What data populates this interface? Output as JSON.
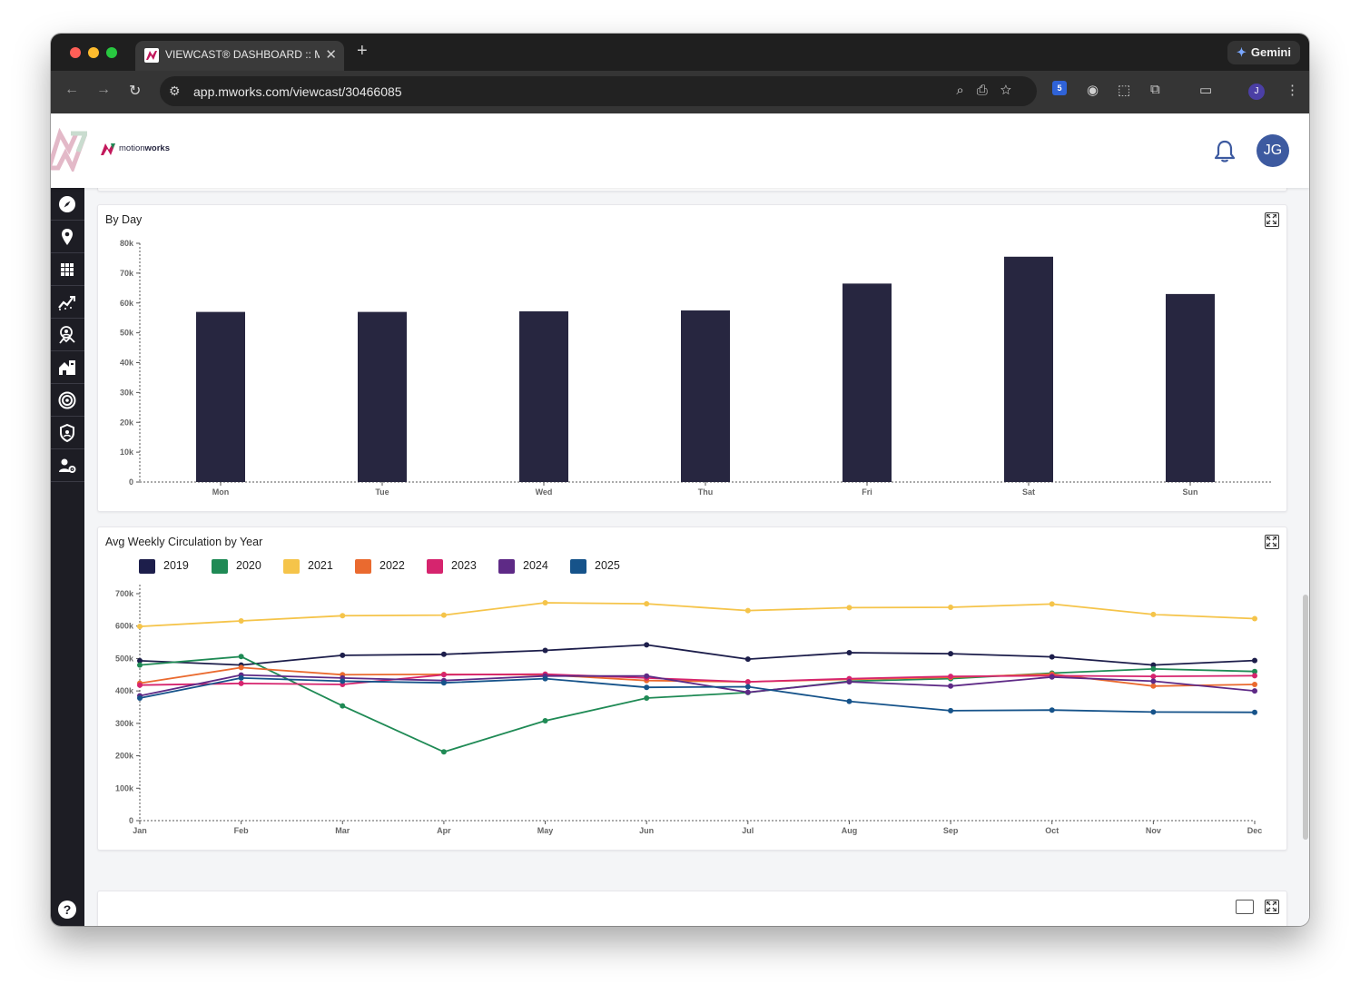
{
  "browser": {
    "tab_title": "VIEWCAST® DASHBOARD :: M",
    "url": "app.mworks.com/viewcast/30466085",
    "gemini_label": "Gemini",
    "extension_badge": "5",
    "profile_initial": "J"
  },
  "header": {
    "brand_prefix": "motion",
    "brand_suffix": "works",
    "avatar_initials": "JG"
  },
  "sidebar": {
    "items": [
      "compass-icon",
      "location-pin-icon",
      "grid-icon",
      "trend-chart-icon",
      "audience-icon",
      "home-building-icon",
      "target-icon",
      "shield-icon",
      "user-settings-icon"
    ],
    "help_label": "?"
  },
  "by_day": {
    "title": "By Day",
    "chart_data": {
      "type": "bar",
      "categories": [
        "Mon",
        "Tue",
        "Wed",
        "Thu",
        "Fri",
        "Sat",
        "Sun"
      ],
      "values": [
        57000,
        57000,
        57200,
        57500,
        66500,
        75500,
        63000
      ],
      "ylim": [
        0,
        80000
      ],
      "yticks": [
        "0",
        "10k",
        "20k",
        "30k",
        "40k",
        "50k",
        "60k",
        "70k",
        "80k"
      ],
      "color": "#272640",
      "grid": false
    }
  },
  "weekly": {
    "title": "Avg Weekly Circulation by Year",
    "chart_data": {
      "type": "line",
      "categories": [
        "Jan",
        "Feb",
        "Mar",
        "Apr",
        "May",
        "Jun",
        "Jul",
        "Aug",
        "Sep",
        "Oct",
        "Nov",
        "Dec"
      ],
      "ylim": [
        0,
        700000
      ],
      "yticks": [
        "0",
        "100k",
        "200k",
        "300k",
        "400k",
        "500k",
        "600k",
        "700k"
      ],
      "legend": "top-left",
      "series": [
        {
          "name": "2019",
          "color": "#1d1e4b",
          "values": [
            493000,
            480000,
            510000,
            513000,
            525000,
            542000,
            498000,
            518000,
            515000,
            505000,
            480000,
            494000
          ]
        },
        {
          "name": "2020",
          "color": "#1f8a55",
          "values": [
            480000,
            506000,
            354000,
            212000,
            308000,
            378000,
            395000,
            430000,
            438000,
            455000,
            468000,
            460000
          ]
        },
        {
          "name": "2021",
          "color": "#f5c44a",
          "values": [
            599000,
            616000,
            632000,
            634000,
            672000,
            669000,
            648000,
            657000,
            658000,
            668000,
            636000,
            623000
          ]
        },
        {
          "name": "2022",
          "color": "#ea6a2f",
          "values": [
            424000,
            472000,
            450000,
            451000,
            450000,
            432000,
            428000,
            436000,
            442000,
            452000,
            415000,
            420000
          ]
        },
        {
          "name": "2023",
          "color": "#d6246e",
          "values": [
            418000,
            423000,
            420000,
            450000,
            452000,
            440000,
            428000,
            438000,
            445000,
            447000,
            445000,
            447000
          ]
        },
        {
          "name": "2024",
          "color": "#5e2a86",
          "values": [
            385000,
            449000,
            440000,
            432000,
            446000,
            446000,
            396000,
            428000,
            415000,
            443000,
            430000,
            400000
          ]
        },
        {
          "name": "2025",
          "color": "#16538a",
          "values": [
            378000,
            440000,
            430000,
            425000,
            438000,
            411000,
            413000,
            368000,
            339000,
            341000,
            335000,
            334000
          ]
        }
      ]
    }
  }
}
